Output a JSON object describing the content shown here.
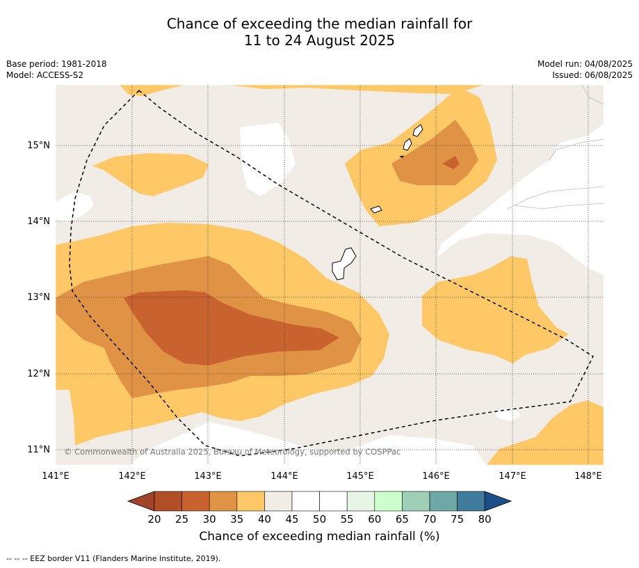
{
  "title_line1": "Chance of exceeding the median rainfall for",
  "title_line2": "11 to 24 August 2025",
  "meta": {
    "base_period": "Base period: 1981-2018",
    "model": "Model: ACCESS-S2",
    "model_run": "Model run: 04/08/2025",
    "issued": "Issued: 06/08/2025"
  },
  "map": {
    "lon_labels": [
      "141°E",
      "142°E",
      "143°E",
      "144°E",
      "145°E",
      "146°E",
      "147°E",
      "148°E"
    ],
    "lat_labels": [
      "15°N",
      "14°N",
      "13°N",
      "12°N",
      "11°N"
    ],
    "copyright": "© Commonwealth of Australia 2025, Bureau of Meteorology, supported by COSPPac"
  },
  "colorbar": {
    "ticks": [
      "20",
      "25",
      "30",
      "35",
      "40",
      "45",
      "50",
      "55",
      "60",
      "65",
      "70",
      "75",
      "80"
    ],
    "colors": [
      "#a0442a",
      "#b04f26",
      "#c8622f",
      "#e09344",
      "#fdc865",
      "#f1ece6",
      "#ffffff",
      "#ffffff",
      "#e6f5e6",
      "#ccffcc",
      "#9fcfb7",
      "#6fa7a6",
      "#3f7c9c",
      "#1a4f87"
    ],
    "label": "Chance of exceeding median rainfall (%)"
  },
  "footnote": "--  --  -- EEZ border V11 (Flanders Marine Institute, 2019)."
}
